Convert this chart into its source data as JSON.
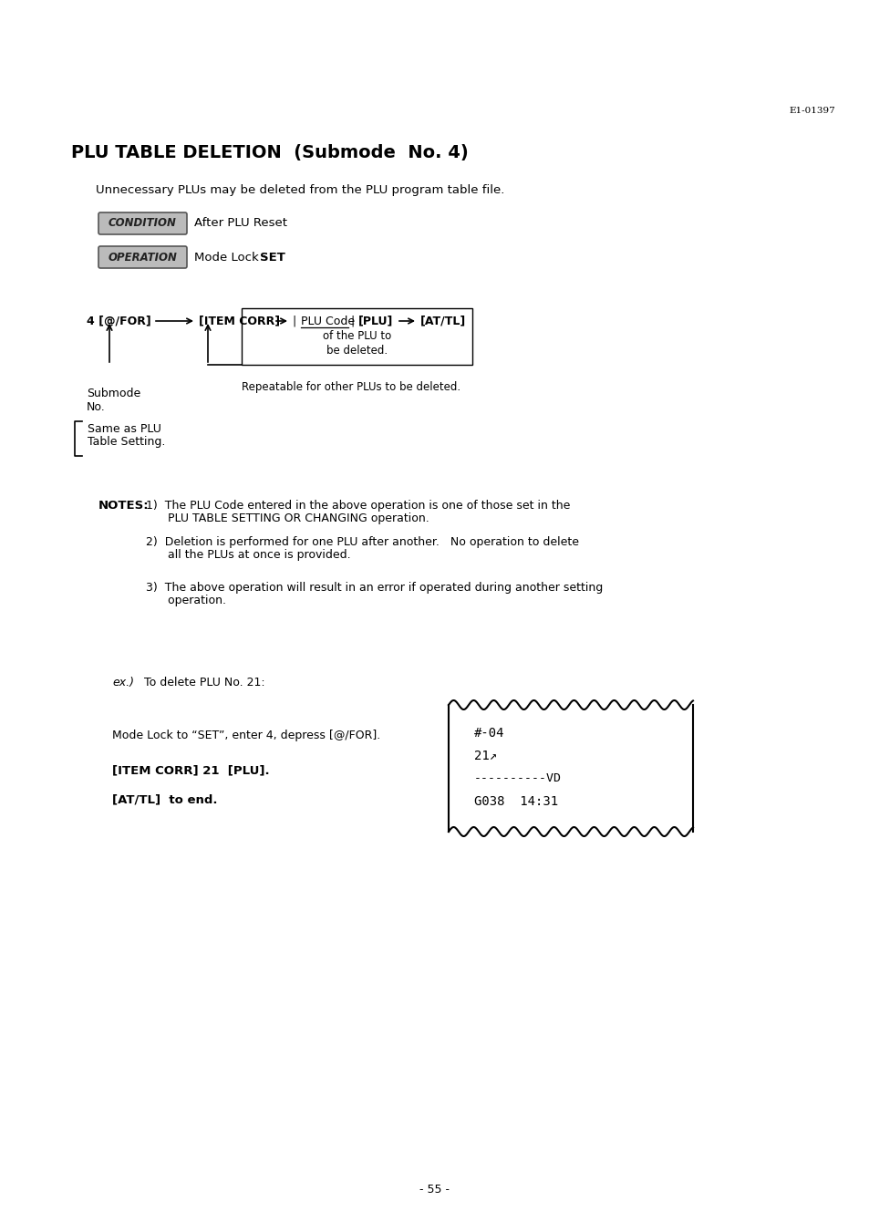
{
  "page_id": "E1-01397",
  "title": "PLU TABLE DELETION  (Submode  No. 4)",
  "subtitle": "Unnecessary PLUs may be deleted from the PLU program table file.",
  "condition_label": "CONDITION",
  "condition_text": "After PLU Reset",
  "operation_label": "OPERATION",
  "operation_text_pre": "Mode Lock : ",
  "operation_text_bold": "SET",
  "flow_step1": "4 [@/FOR]",
  "flow_step2": "[ITEM CORR]",
  "flow_step3": "PLU Code",
  "flow_step3b": "[PLU]",
  "flow_step4": "[AT/TL]",
  "flow_note1": "of the PLU to",
  "flow_note2": "be deleted.",
  "flow_repeat": "Repeatable for other PLUs to be deleted.",
  "submode_label1": "Submode",
  "submode_label2": "No.",
  "curly_label1": "Same as PLU",
  "curly_label2": "Table Setting.",
  "notes_header": "NOTES:",
  "note1a": "1)  The PLU Code entered in the above operation is one of those set in the",
  "note1b": "      PLU TABLE SETTING OR CHANGING operation.",
  "note2a": "2)  Deletion is performed for one PLU after another.   No operation to delete",
  "note2b": "      all the PLUs at once is provided.",
  "note3a": "3)  The above operation will result in an error if operated during another setting",
  "note3b": "      operation.",
  "ex_label": "ex.)",
  "ex_text": "To delete PLU No. 21:",
  "mode_lock_text": "Mode Lock to “SET”, enter 4, depress [@/FOR].",
  "item_corr_text": "[ITEM CORR] 21  [PLU].",
  "attl_text": "[AT/TL]  to end.",
  "receipt_line1": "#-04",
  "receipt_line2": "21↗",
  "receipt_line3": "----------VD",
  "receipt_line4": "G038  14:31",
  "page_number": "- 55 -",
  "bg_color": "#ffffff",
  "text_color": "#000000"
}
